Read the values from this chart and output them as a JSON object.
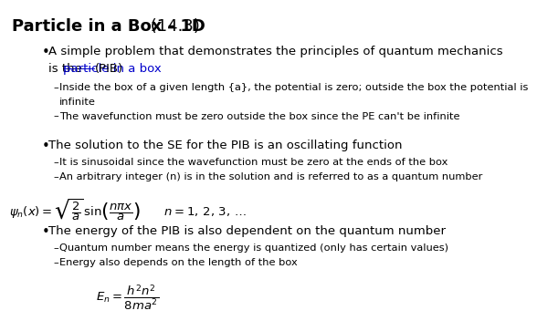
{
  "background_color": "#ffffff",
  "text_color": "#000000",
  "link_color": "#0000cc",
  "title_bold": "Particle in a Box - 1D",
  "title_normal": " (14.3)",
  "title_fontsize": 13,
  "main_fontsize": 9.5,
  "sub_fontsize": 8.2,
  "formula_fontsize": 9.5,
  "bullet2_formula": "$\\psi_n(x) = \\sqrt{\\dfrac{2}{a}}\\,\\sin\\!\\left(\\dfrac{n\\pi x}{a}\\right) \\qquad n = 1,\\, 2,\\, 3,\\, \\ldots$",
  "bullet3_formula": "$E_n = \\dfrac{h^2 n^2}{8ma^2}$"
}
